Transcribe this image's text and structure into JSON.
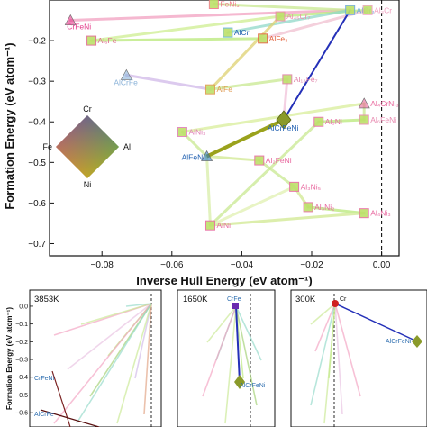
{
  "chart_data": [
    {
      "panel": "main",
      "type": "scatter",
      "xlabel": "Inverse Hull Energy (eV atom⁻¹)",
      "ylabel": "Formation Energy (eV atom⁻¹)",
      "xlim": [
        -0.095,
        0.005
      ],
      "ylim": [
        -0.73,
        -0.1
      ],
      "x_ticks": [
        {
          "value": -0.08,
          "label": "−0.08"
        },
        {
          "value": -0.06,
          "label": "−0.06"
        },
        {
          "value": -0.04,
          "label": "−0.04"
        },
        {
          "value": -0.02,
          "label": "−0.02"
        },
        {
          "value": 0.0,
          "label": "0.00"
        }
      ],
      "y_ticks": [
        {
          "value": -0.2,
          "label": "−0.2"
        },
        {
          "value": -0.3,
          "label": "−0.3"
        },
        {
          "value": -0.4,
          "label": "−0.4"
        },
        {
          "value": -0.5,
          "label": "−0.5"
        },
        {
          "value": -0.6,
          "label": "−0.6"
        },
        {
          "value": -0.7,
          "label": "−0.7"
        }
      ],
      "reference_line_x": 0.0,
      "points": [
        {
          "label": "CrFeNi",
          "x": -0.089,
          "y": -0.15,
          "color": "#e33b8a",
          "marker": "triangle"
        },
        {
          "label": "FeNi₃",
          "x": -0.048,
          "y": -0.11,
          "color": "#f07a8a",
          "marker": "square"
        },
        {
          "label": "Al₄₅Cr₇",
          "x": -0.029,
          "y": -0.14,
          "color": "#ee88aa",
          "marker": "square"
        },
        {
          "label": "AlCr₂",
          "x": -0.009,
          "y": -0.125,
          "color": "#6aa6e0",
          "marker": "square"
        },
        {
          "label": "Al₃Cr",
          "x": -0.004,
          "y": -0.125,
          "color": "#f0a0c0",
          "marker": "square"
        },
        {
          "label": "AlCr",
          "x": -0.044,
          "y": -0.18,
          "color": "#5fb3e0",
          "marker": "square"
        },
        {
          "label": "AlFe₃",
          "x": -0.034,
          "y": -0.195,
          "color": "#e2603a",
          "marker": "square"
        },
        {
          "label": "Al₆Fe",
          "x": -0.083,
          "y": -0.2,
          "color": "#e06a90",
          "marker": "square"
        },
        {
          "label": "AlCrFe",
          "x": -0.073,
          "y": -0.285,
          "color": "#8ab2d8",
          "marker": "triangle"
        },
        {
          "label": "Al₁₃Fe₇",
          "x": -0.027,
          "y": -0.295,
          "color": "#e080a8",
          "marker": "square"
        },
        {
          "label": "AlFe",
          "x": -0.049,
          "y": -0.32,
          "color": "#e09a50",
          "marker": "square"
        },
        {
          "label": "Al₄CrNi₃",
          "x": -0.005,
          "y": -0.355,
          "color": "#e8649a",
          "marker": "triangle"
        },
        {
          "label": "AlCrFeNi",
          "x": -0.028,
          "y": -0.395,
          "color": "#8a9a2a",
          "marker": "diamond"
        },
        {
          "label": "Al₃Ni",
          "x": -0.018,
          "y": -0.4,
          "color": "#e86aa8",
          "marker": "square"
        },
        {
          "label": "Al₆FeNi",
          "x": -0.005,
          "y": -0.395,
          "color": "#e88ab0",
          "marker": "square"
        },
        {
          "label": "AlNi₃",
          "x": -0.057,
          "y": -0.425,
          "color": "#e080b8",
          "marker": "square"
        },
        {
          "label": "AlFeNi",
          "x": -0.05,
          "y": -0.485,
          "color": "#2f7ac0",
          "marker": "triangle"
        },
        {
          "label": "Al₂FeNi",
          "x": -0.035,
          "y": -0.495,
          "color": "#e86aa0",
          "marker": "square"
        },
        {
          "label": "Al₃Ni₅",
          "x": -0.025,
          "y": -0.56,
          "color": "#e86aa0",
          "marker": "square"
        },
        {
          "label": "Al₃Ni₂",
          "x": -0.021,
          "y": -0.61,
          "color": "#e86aa0",
          "marker": "square"
        },
        {
          "label": "AlNi",
          "x": -0.049,
          "y": -0.655,
          "color": "#e86aa0",
          "marker": "square"
        },
        {
          "label": "Al₄Ni₃",
          "x": -0.005,
          "y": -0.625,
          "color": "#e86aa0",
          "marker": "square"
        }
      ],
      "legend": {
        "type": "color-diamond",
        "corners": {
          "top": "Cr",
          "left": "Fe",
          "right": "Al",
          "bottom": "Ni"
        }
      }
    },
    {
      "panel": "inset-3853K",
      "type": "scatter",
      "title": "3853K",
      "ylabel": "Formation Energy (eV atom⁻¹)",
      "ylim": [
        -0.65,
        0.02
      ],
      "y_ticks": [
        "0.0",
        "−0.1",
        "−0.2",
        "−0.3",
        "−0.4",
        "−0.5",
        "−0.6"
      ],
      "point_labels": [
        "CrFeNi",
        "AlCrFe"
      ]
    },
    {
      "panel": "inset-1650K",
      "type": "scatter",
      "title": "1650K",
      "point_labels": [
        "CrFe",
        "AlCrFeNi"
      ]
    },
    {
      "panel": "inset-300K",
      "type": "scatter",
      "title": "300K",
      "point_labels": [
        "Cr",
        "AlCrFeNi"
      ]
    }
  ]
}
